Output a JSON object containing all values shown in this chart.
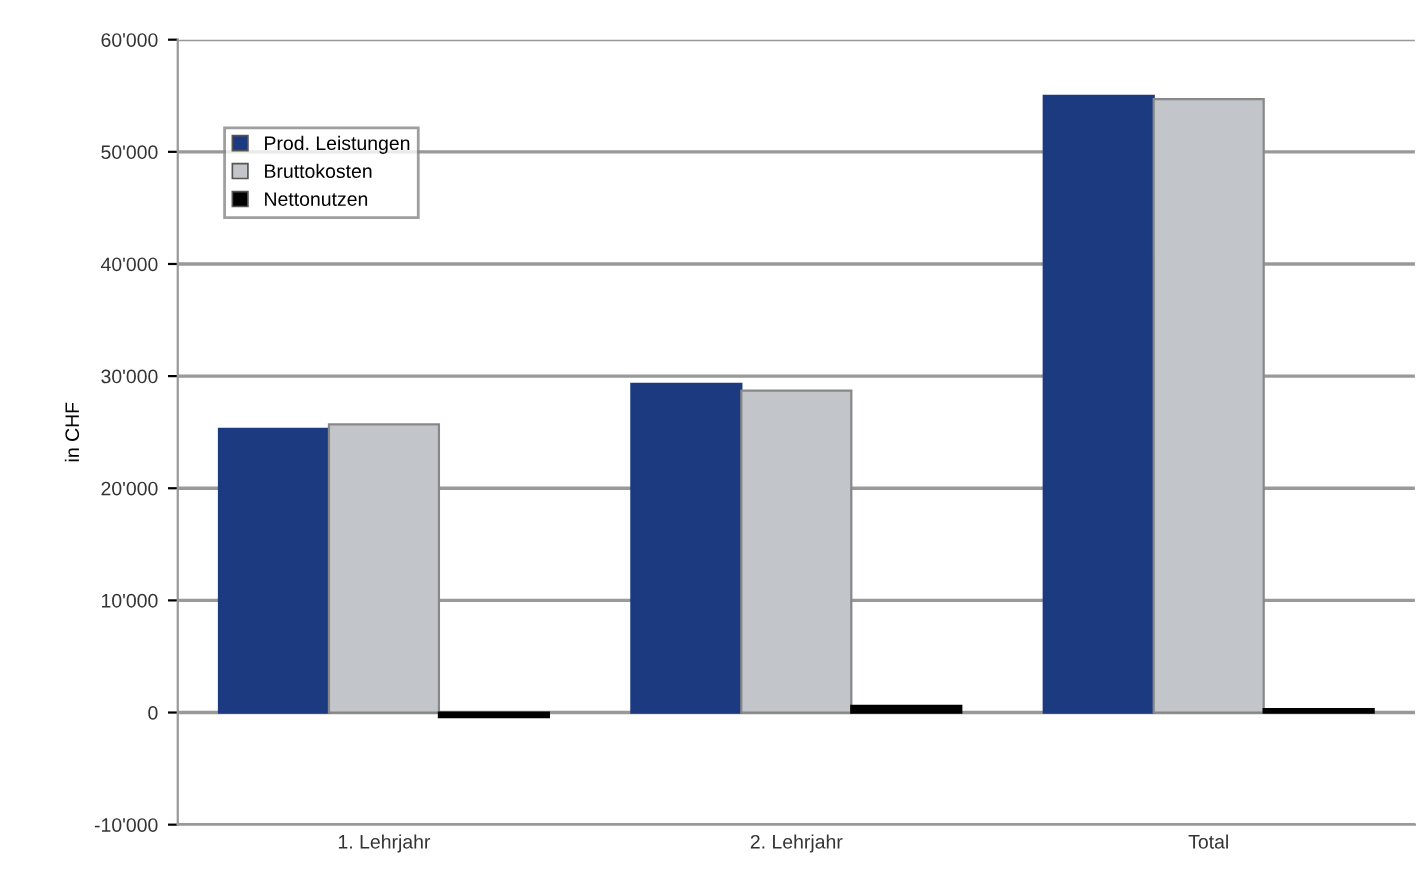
{
  "chart_data": {
    "type": "bar",
    "ylabel": "in CHF",
    "categories": [
      "1. Lehrjahr",
      "2. Lehrjahr",
      "Total"
    ],
    "series": [
      {
        "name": "Prod. Leistungen",
        "color": "#1c3a80",
        "values": [
          25300,
          29300,
          55000
        ]
      },
      {
        "name": "Bruttokosten",
        "color": "#c2c6cb",
        "values": [
          25700,
          28700,
          54700
        ]
      },
      {
        "name": "Nettonutzen",
        "color": "#000000",
        "values": [
          -400,
          600,
          300
        ]
      }
    ],
    "ylim": [
      -10000,
      60000
    ],
    "yticks": [
      {
        "value": -10000,
        "label": "-10'000"
      },
      0,
      {
        "value": 10000,
        "label": "10'000"
      },
      {
        "value": 20000,
        "label": "20'000"
      },
      {
        "value": 30000,
        "label": "30'000"
      },
      {
        "value": 40000,
        "label": "40'000"
      },
      {
        "value": 50000,
        "label": "50'000"
      },
      {
        "value": 60000,
        "label": "60'000"
      }
    ],
    "grid": "y",
    "legend": "top left"
  }
}
